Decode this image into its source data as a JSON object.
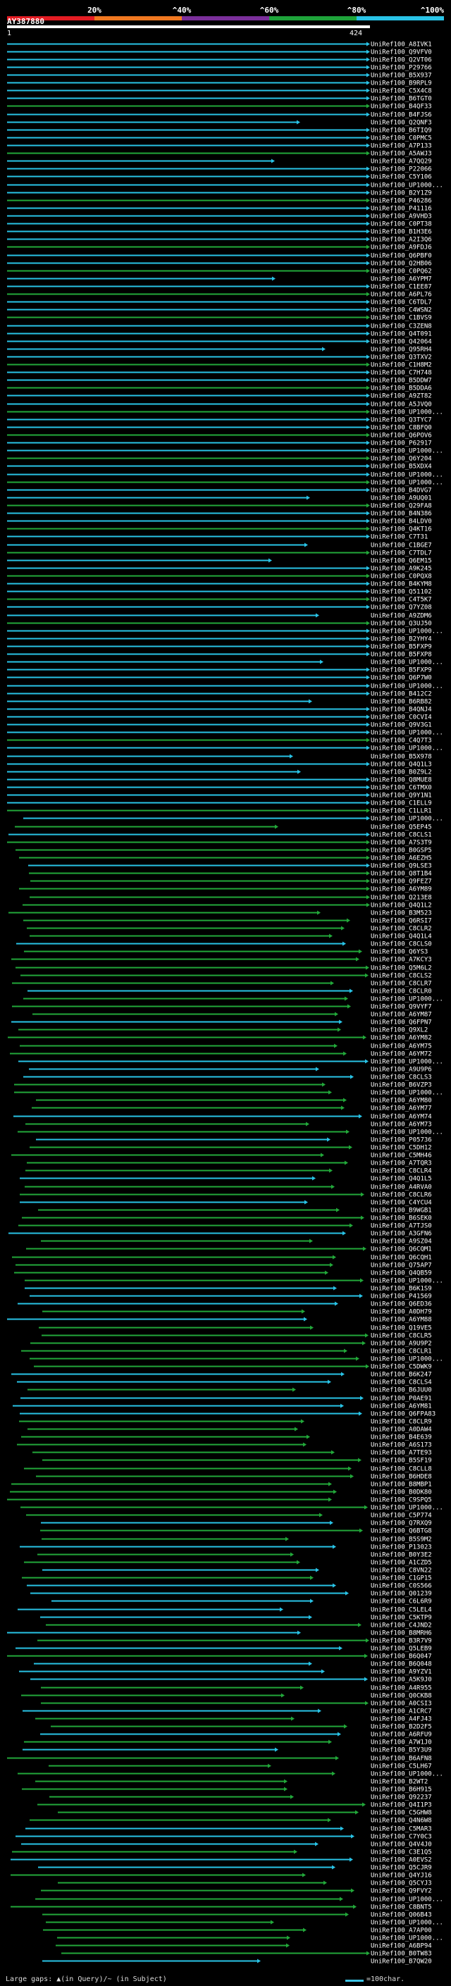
{
  "scale": {
    "labels": [
      "20%",
      "^40%",
      "^60%",
      "^80%",
      "^100%"
    ],
    "colors": [
      "#e31c23",
      "#f07820",
      "#7b2f9a",
      "#1ea33a",
      "#29c3e6"
    ]
  },
  "query": {
    "accession": "AY387880",
    "start": "1",
    "end": "424"
  },
  "footer": {
    "gaps": "Large gaps: ▲(in Query)/~ (in Subject)",
    "scale": "=100char."
  },
  "hits": [
    "UniRef100_A8IVK1",
    "UniRef100_Q9VFV0",
    "UniRef100_Q2VT06",
    "UniRef100_P29766",
    "UniRef100_B5X937",
    "UniRef100_B9RPL9",
    "UniRef100_C5X4C8",
    "UniRef100_B6TGT0",
    "UniRef100_B4QF33",
    "UniRef100_B4FJS6",
    "UniRef100_Q2QNF3",
    "UniRef100_B6TIQ9",
    "UniRef100_C0PMC5",
    "UniRef100_A7P133",
    "UniRef100_A5AWJ3",
    "UniRef100_A7QQ29",
    "UniRef100_P22066",
    "UniRef100_C5Y106",
    "UniRef100_UP1000...",
    "UniRef100_B2Y1Z9",
    "UniRef100_P46286",
    "UniRef100_P41116",
    "UniRef100_A9VHD3",
    "UniRef100_C0PT38",
    "UniRef100_B1H3E6",
    "UniRef100_A2I3Q6",
    "UniRef100_A9FDJ6",
    "UniRef100_Q6PBF0",
    "UniRef100_Q2HB06",
    "UniRef100_C0PQ62",
    "UniRef100_A6YPM7",
    "UniRef100_C1EE87",
    "UniRef100_A6PL76",
    "UniRef100_C6TDL7",
    "UniRef100_C4WSN2",
    "UniRef100_C1BVS9",
    "UniRef100_C3ZEN8",
    "UniRef100_Q4T091",
    "UniRef100_Q42064",
    "UniRef100_Q95RH4",
    "UniRef100_Q3TXV2",
    "UniRef100_C1H8M2",
    "UniRef100_C7H748",
    "UniRef100_B5DDW7",
    "UniRef100_B5DDA6",
    "UniRef100_A9ZT82",
    "UniRef100_A5JVQ0",
    "UniRef100_UP1000...",
    "UniRef100_Q3TYC7",
    "UniRef100_C8BFQ0",
    "UniRef100_Q6POV6",
    "UniRef100_P62917",
    "UniRef100_UP1000...",
    "UniRef100_Q6Y204",
    "UniRef100_B5XDX4",
    "UniRef100_UP1000...",
    "UniRef100_UP1000...",
    "UniRef100_B4DVG7",
    "UniRef100_A9UQ01",
    "UniRef100_Q29FA8",
    "UniRef100_B4N386",
    "UniRef100_B4LDV0",
    "UniRef100_Q4KT16",
    "UniRef100_C7T31",
    "UniRef100_C1BGE7",
    "UniRef100_C7TDL7",
    "UniRef100_Q6EM15",
    "UniRef100_A9K245",
    "UniRef100_C0PQX8",
    "UniRef100_B4KYM8",
    "UniRef100_Q51102",
    "UniRef100_C4T5K7",
    "UniRef100_Q7YZ08",
    "UniRef100_A9ZDM6",
    "UniRef100_Q3UJ50",
    "UniRef100_UP1000...",
    "UniRef100_B2YHY4",
    "UniRef100_B5FXP9",
    "UniRef100_B5FXP8",
    "UniRef100_UP1000...",
    "UniRef100_B5FXP9",
    "UniRef100_Q6P7W0",
    "UniRef100_UP1000...",
    "UniRef100_B412C2",
    "UniRef100_B6RB82",
    "UniRef100_B4QNJ4",
    "UniRef100_C0CVI4",
    "UniRef100_Q9V3G1",
    "UniRef100_UP1000...",
    "UniRef100_C4Q7T3",
    "UniRef100_UP1000...",
    "UniRef100_B5X978",
    "UniRef100_Q4Q1L3",
    "UniRef100_B0Z9L2",
    "UniRef100_Q8MUE8",
    "UniRef100_C6TMX0",
    "UniRef100_Q9Y1N1",
    "UniRef100_C1ELL9",
    "UniRef100_C1LLR1",
    "UniRef100_UP1000...",
    "UniRef100_Q5EP45",
    "UniRef100_C8CLS1",
    "UniRef100_A7S3T9",
    "UniRef100_B0GSP5",
    "UniRef100_A6EZH5",
    "UniRef100_Q9LSE3",
    "UniRef100_Q8T1B4",
    "UniRef100_Q9FEZ7",
    "UniRef100_A6YM89",
    "UniRef100_Q213E8",
    "UniRef100_Q4Q1L2",
    "UniRef100_B3M523",
    "UniRef100_Q6RSI7",
    "UniRef100_C8CLR2",
    "UniRef100_Q4Q1L4",
    "UniRef100_C8CLS0",
    "UniRef100_Q6YS3",
    "UniRef100_A7KCY3",
    "UniRef100_Q5M6L2",
    "UniRef100_C8CLS2",
    "UniRef100_C8CLR7",
    "UniRef100_C8CLR0",
    "UniRef100_UP1000...",
    "UniRef100_Q9VYF7",
    "UniRef100_A6YM87",
    "UniRef100_Q6FPN7",
    "UniRef100_Q9XL2",
    "UniRef100_A6YM82",
    "UniRef100_A6YM75",
    "UniRef100_A6YM72",
    "UniRef100_UP1000...",
    "UniRef100_A9U9P6",
    "UniRef100_C8CLS3",
    "UniRef100_B6VZP3",
    "UniRef100_UP1000...",
    "UniRef100_A6YM80",
    "UniRef100_A6YM77",
    "UniRef100_A6YM74",
    "UniRef100_A6YM73",
    "UniRef100_UP1000...",
    "UniRef100_P05736",
    "UniRef100_C5DH12",
    "UniRef100_C5MH46",
    "UniRef100_A7TQR3",
    "UniRef100_C8CLR4",
    "UniRef100_Q4Q1L5",
    "UniRef100_A4RVA0",
    "UniRef100_C8CLR6",
    "UniRef100_C4YCU4",
    "UniRef100_B9WGB1",
    "UniRef100_B6SEK0",
    "UniRef100_A7TJS0",
    "UniRef100_A3GFN6",
    "UniRef100_A9SZ04",
    "UniRef100_Q6CQM1",
    "UniRef100_Q6CQH1",
    "UniRef100_Q75AP7",
    "UniRef100_Q4QB59",
    "UniRef100_UP1000...",
    "UniRef100_B6K1S9",
    "UniRef100_P41569",
    "UniRef100_Q6ED36",
    "UniRef100_A0DH79",
    "UniRef100_A6YM88",
    "UniRef100_Q19VE5",
    "UniRef100_C8CLR5",
    "UniRef100_A9U9P2",
    "UniRef100_C8CLR1",
    "UniRef100_UP1000...",
    "UniRef100_C5DWK9",
    "UniRef100_B6K247",
    "UniRef100_C8CLS4",
    "UniRef100_B6JUU0",
    "UniRef100_P0AE91",
    "UniRef100_A6YM81",
    "UniRef100_Q6FPA83",
    "UniRef100_C8CLR9",
    "UniRef100_A0DAW4",
    "UniRef100_B4E639",
    "UniRef100_A6S173",
    "UniRef100_A7TE93",
    "UniRef100_B5SF19",
    "UniRef100_C8CLL8",
    "UniRef100_B6HDE8",
    "UniRef100_B8MBP1",
    "UniRef100_B0DK80",
    "UniRef100_C9SPQ5",
    "UniRef100_UP1000...",
    "UniRef100_C5P774",
    "UniRef100_Q7RXQ9",
    "UniRef100_Q6BTG8",
    "UniRef100_B5S9M2",
    "UniRef100_P13023",
    "UniRef100_B0Y3E2",
    "UniRef100_A1CZD5",
    "UniRef100_C8VN22",
    "UniRef100_C1GP15",
    "UniRef100_C0S566",
    "UniRef100_Q01239",
    "UniRef100_C6L6R9",
    "UniRef100_C5LEL4",
    "UniRef100_C5KTP9",
    "UniRef100_C4JND2",
    "UniRef100_B8MRH6",
    "UniRef100_B3R7V9",
    "UniRef100_Q5LEB9",
    "UniRef100_B6Q047",
    "UniRef100_B6Q048",
    "UniRef100_A9YZV1",
    "UniRef100_A5K9J0",
    "UniRef100_A4R955",
    "UniRef100_Q0CKB8",
    "UniRef100_A0CSI3",
    "UniRef100_A1CRC7",
    "UniRef100_A4FJ43",
    "UniRef100_B2D2F5",
    "UniRef100_A6RFU9",
    "UniRef100_A7W1J0",
    "UniRef100_B5Y3U9",
    "UniRef100_B6AFN8",
    "UniRef100_C5LH67",
    "UniRef100_UP1000...",
    "UniRef100_B2WT2",
    "UniRef100_B6H915",
    "UniRef100_Q92237",
    "UniRef100_Q4I1P3",
    "UniRef100_C5GHW8",
    "UniRef100_Q4N6W8",
    "UniRef100_C5MAR3",
    "UniRef100_C7Y0C3",
    "UniRef100_Q4V4J0",
    "UniRef100_C3E1Q5",
    "UniRef100_A0EVS2",
    "UniRef100_Q5CJR9",
    "UniRef100_Q4YJ16",
    "UniRef100_Q5CYJ3",
    "UniRef100_Q9FVY2",
    "UniRef100_UP1000...",
    "UniRef100_C8BNT5",
    "UniRef100_Q06B43",
    "UniRef100_UP1000...",
    "UniRef100_A7AP00",
    "UniRef100_UP1000...",
    "UniRef100_A6BP94",
    "UniRef100_B0TW83",
    "UniRef100_B7QW20"
  ]
}
